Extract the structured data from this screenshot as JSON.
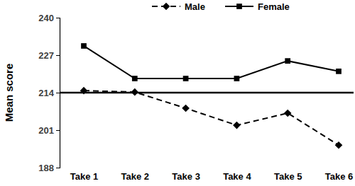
{
  "chart_data": {
    "type": "line",
    "y_label": "Mean score",
    "categories": [
      "Take 1",
      "Take 2",
      "Take 3",
      "Take 4",
      "Take 5",
      "Take 6"
    ],
    "series": [
      {
        "name": "Male",
        "color": "#000000",
        "marker": "diamond",
        "line_style": "dashed",
        "values": [
          214.7,
          214.2,
          208.6,
          202.7,
          206.9,
          195.8
        ]
      },
      {
        "name": "Female",
        "color": "#000000",
        "marker": "square",
        "line_style": "solid",
        "values": [
          230.2,
          218.9,
          218.9,
          218.9,
          225.0,
          221.4
        ]
      }
    ],
    "ylim": [
      188,
      240
    ],
    "yticks": [
      188,
      201,
      214,
      227,
      240
    ],
    "reference_line": 214,
    "grid": false,
    "legend": "top"
  }
}
